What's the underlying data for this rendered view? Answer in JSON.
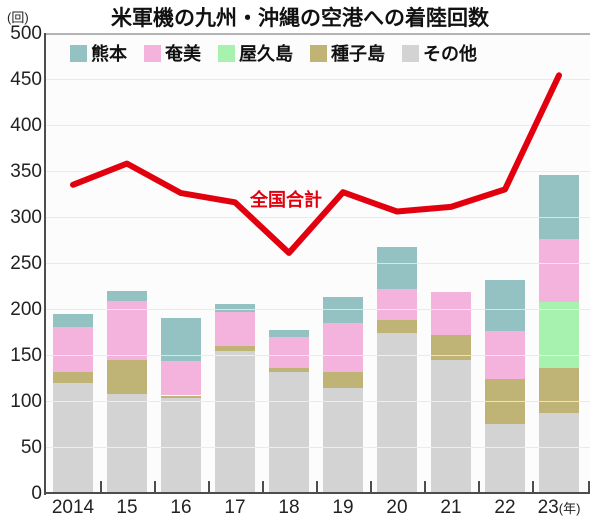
{
  "title": "米軍機の九州・沖縄の空港への着陸回数",
  "unit_label": "(回)",
  "line_label": "全国合計",
  "x_axis_suffix": "(年)",
  "colors": {
    "kumamoto": "#94c1c2",
    "amami": "#f3b3dc",
    "yakushima": "#a6f2ae",
    "tanegashima": "#bfb375",
    "sonota": "#d3d3d3",
    "line_red": "#e2000f",
    "grid": "#c9c9c9",
    "axis": "#4d4d4d"
  },
  "chart_data": {
    "type": "bar",
    "subtype": "stacked-bar-with-line",
    "title": "米軍機の九州・沖縄の空港への着陸回数",
    "ylabel": "(回)",
    "xlabel": "(年)",
    "ylim": [
      0,
      500
    ],
    "ytick_step": 50,
    "grid": true,
    "legend_position": "top-inside",
    "categories": [
      "2014",
      "15",
      "16",
      "17",
      "18",
      "19",
      "20",
      "21",
      "22",
      "23"
    ],
    "legend_order": [
      "熊本",
      "奄美",
      "屋久島",
      "種子島",
      "その他"
    ],
    "series": [
      {
        "name": "その他",
        "color_key": "sonota",
        "values": [
          120,
          108,
          103,
          154,
          132,
          114,
          174,
          145,
          75,
          87
        ]
      },
      {
        "name": "種子島",
        "color_key": "tanegashima",
        "values": [
          12,
          37,
          3,
          6,
          4,
          18,
          14,
          27,
          49,
          49
        ]
      },
      {
        "name": "屋久島",
        "color_key": "yakushima",
        "values": [
          0,
          0,
          0,
          0,
          0,
          0,
          0,
          0,
          0,
          72
        ]
      },
      {
        "name": "奄美",
        "color_key": "amami",
        "values": [
          48,
          64,
          37,
          37,
          34,
          53,
          34,
          46,
          52,
          68
        ]
      },
      {
        "name": "熊本",
        "color_key": "kumamoto",
        "values": [
          15,
          11,
          47,
          9,
          7,
          28,
          45,
          0,
          56,
          70
        ]
      }
    ],
    "line_series": {
      "name": "全国合計",
      "color_key": "line_red",
      "values": [
        335,
        358,
        326,
        316,
        261,
        327,
        306,
        311,
        330,
        454
      ]
    }
  }
}
